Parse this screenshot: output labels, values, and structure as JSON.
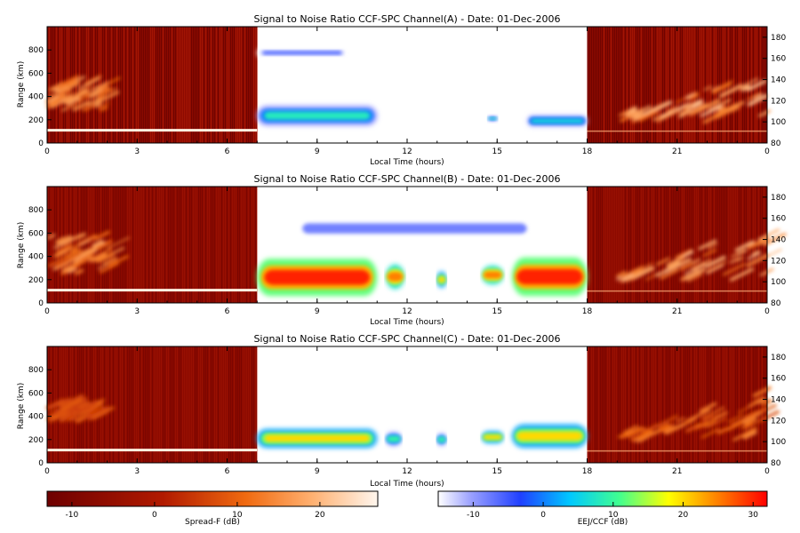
{
  "chart_data": [
    {
      "type": "heatmap",
      "title": "Signal to Noise Ratio CCF-SPC Channel(A) - Date: 01-Dec-2006",
      "xlabel": "Local Time (hours)",
      "ylabel": "Range (km)",
      "x_ticks": [
        "0",
        "3",
        "6",
        "9",
        "12",
        "15",
        "18",
        "21",
        "0"
      ],
      "y_ticks": [
        "0",
        "200",
        "400",
        "600",
        "800"
      ],
      "y2_ticks": [
        "80",
        "100",
        "120",
        "140",
        "160",
        "180"
      ],
      "xlim": [
        0,
        24
      ],
      "ylim": [
        0,
        1000
      ],
      "y2lim": [
        80,
        190
      ],
      "spread_f_echoes": [
        {
          "t0": 0.0,
          "t1": 1.8,
          "y0": 280,
          "y1": 520,
          "snr_db": 15
        },
        {
          "t0": 19.0,
          "t1": 24.0,
          "y0": 120,
          "y1": 180,
          "snr_db": 18
        }
      ],
      "eej_ccf_echoes": [
        {
          "t0": 7.0,
          "t1": 10.0,
          "y0": 740,
          "y1": 810,
          "snr_db": -5
        },
        {
          "t0": 7.0,
          "t1": 11.0,
          "y0": 150,
          "y1": 320,
          "snr_db": 8
        },
        {
          "t0": 14.7,
          "t1": 15.0,
          "y0": 190,
          "y1": 230,
          "snr_db": 8
        },
        {
          "t0": 16.0,
          "t1": 18.0,
          "y0": 140,
          "y1": 240,
          "snr_db": 6
        }
      ]
    },
    {
      "type": "heatmap",
      "title": "Signal to Noise Ratio CCF-SPC Channel(B) - Date: 01-Dec-2006",
      "xlabel": "Local Time (hours)",
      "ylabel": "Range (km)",
      "x_ticks": [
        "0",
        "3",
        "6",
        "9",
        "12",
        "15",
        "18",
        "21",
        "0"
      ],
      "y_ticks": [
        "0",
        "200",
        "400",
        "600",
        "800"
      ],
      "y2_ticks": [
        "80",
        "100",
        "120",
        "140",
        "160",
        "180"
      ],
      "xlim": [
        0,
        24
      ],
      "ylim": [
        0,
        1000
      ],
      "y2lim": [
        80,
        190
      ],
      "spread_f_echoes": [
        {
          "t0": 0.0,
          "t1": 2.2,
          "y0": 250,
          "y1": 560,
          "snr_db": 15
        },
        {
          "t0": 19.0,
          "t1": 24.0,
          "y0": 120,
          "y1": 190,
          "snr_db": 18
        }
      ],
      "eej_ccf_echoes": [
        {
          "t0": 8.0,
          "t1": 16.5,
          "y0": 530,
          "y1": 750,
          "snr_db": -8
        },
        {
          "t0": 7.0,
          "t1": 11.0,
          "y0": 60,
          "y1": 380,
          "snr_db": 30
        },
        {
          "t0": 11.3,
          "t1": 11.9,
          "y0": 120,
          "y1": 330,
          "snr_db": 25
        },
        {
          "t0": 13.0,
          "t1": 13.3,
          "y0": 130,
          "y1": 270,
          "snr_db": 20
        },
        {
          "t0": 14.5,
          "t1": 15.2,
          "y0": 160,
          "y1": 320,
          "snr_db": 25
        },
        {
          "t0": 15.5,
          "t1": 18.0,
          "y0": 60,
          "y1": 390,
          "snr_db": 30
        }
      ]
    },
    {
      "type": "heatmap",
      "title": "Signal to Noise Ratio CCF-SPC Channel(C) - Date: 01-Dec-2006",
      "xlabel": "Local Time (hours)",
      "ylabel": "Range (km)",
      "x_ticks": [
        "0",
        "3",
        "6",
        "9",
        "12",
        "15",
        "18",
        "21",
        "0"
      ],
      "y_ticks": [
        "0",
        "200",
        "400",
        "600",
        "800"
      ],
      "y2_ticks": [
        "80",
        "100",
        "120",
        "140",
        "160",
        "180"
      ],
      "xlim": [
        0,
        24
      ],
      "ylim": [
        0,
        1000
      ],
      "y2lim": [
        80,
        190
      ],
      "spread_f_echoes": [
        {
          "t0": 0.0,
          "t1": 1.6,
          "y0": 350,
          "y1": 500,
          "snr_db": 8
        },
        {
          "t0": 19.0,
          "t1": 24.0,
          "y0": 120,
          "y1": 180,
          "snr_db": 12
        }
      ],
      "eej_ccf_echoes": [
        {
          "t0": 7.0,
          "t1": 11.0,
          "y0": 130,
          "y1": 290,
          "snr_db": 20
        },
        {
          "t0": 11.3,
          "t1": 11.8,
          "y0": 150,
          "y1": 260,
          "snr_db": 10
        },
        {
          "t0": 13.0,
          "t1": 13.3,
          "y0": 150,
          "y1": 250,
          "snr_db": 10
        },
        {
          "t0": 14.5,
          "t1": 15.2,
          "y0": 170,
          "y1": 270,
          "snr_db": 20
        },
        {
          "t0": 15.5,
          "t1": 18.0,
          "y0": 130,
          "y1": 330,
          "snr_db": 20
        }
      ]
    }
  ],
  "colorbars": [
    {
      "label": "Spread-F (dB)",
      "ticks": [
        "-10",
        "0",
        "10",
        "20"
      ],
      "range": [
        -13,
        27
      ],
      "scale": "red-temperature"
    },
    {
      "label": "EEJ/CCF (dB)",
      "ticks": [
        "-10",
        "0",
        "10",
        "20",
        "30"
      ],
      "range": [
        -15,
        32
      ],
      "scale": "rainbow"
    }
  ]
}
